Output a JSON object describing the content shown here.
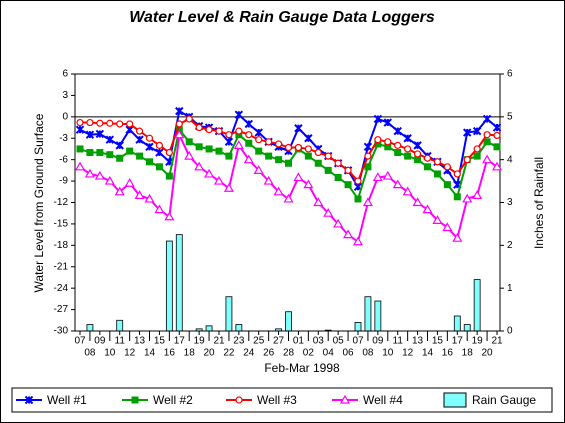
{
  "chart_data": {
    "type": "line",
    "title": "Water Level & Rain Gauge Data Loggers",
    "x_label": "Feb-Mar 1998",
    "y_label": "Water Level from Ground Surface",
    "y2_label": "Inches of Rainfall",
    "categories": [
      "07",
      "08",
      "09",
      "10",
      "11",
      "12",
      "13",
      "14",
      "15",
      "16",
      "17",
      "18",
      "19",
      "20",
      "21",
      "22",
      "23",
      "24",
      "25",
      "26",
      "27",
      "28",
      "01",
      "02",
      "03",
      "04",
      "05",
      "06",
      "07",
      "08",
      "09",
      "10",
      "11",
      "12",
      "13",
      "14",
      "15",
      "16",
      "17",
      "18",
      "19",
      "20",
      "21"
    ],
    "ylim": [
      -30,
      6
    ],
    "yticks": [
      -30,
      -27,
      -24,
      -21,
      -18,
      -15,
      -12,
      -9,
      -6,
      -3,
      0,
      3,
      6
    ],
    "y2lim": [
      0,
      6
    ],
    "y2ticks": [
      0,
      1,
      2,
      3,
      4,
      5,
      6
    ],
    "grid": false,
    "legend": "bottom",
    "series": [
      {
        "name": "Well #1",
        "color": "#0000ff",
        "marker": "x",
        "values": [
          -1.8,
          -2.5,
          -2.4,
          -3.2,
          -4.0,
          -1.8,
          -3.2,
          -4.2,
          -5.0,
          -6.3,
          0.8,
          0,
          -1.3,
          -1.5,
          -2.0,
          -3.5,
          0.3,
          -1.0,
          -2.2,
          -3.5,
          -4.2,
          -4.8,
          -1.6,
          -3.0,
          -4.5,
          -5.5,
          -6.5,
          -7.5,
          -9.8,
          -4.2,
          -0.3,
          -0.8,
          -2.0,
          -3.0,
          -4.0,
          -5.5,
          -6.3,
          -7.5,
          -9.5,
          -2.2,
          -2.0,
          -0.3,
          -1.5
        ]
      },
      {
        "name": "Well #2",
        "color": "#00a000",
        "marker": "square",
        "values": [
          -4.5,
          -5.0,
          -5.0,
          -5.3,
          -5.8,
          -4.8,
          -5.5,
          -6.3,
          -7.0,
          -8.3,
          -1.8,
          -3.5,
          -4.2,
          -4.5,
          -4.8,
          -5.5,
          -2.5,
          -3.7,
          -4.8,
          -5.5,
          -6.0,
          -6.5,
          -4.5,
          -5.5,
          -6.5,
          -7.5,
          -8.5,
          -9.5,
          -11.5,
          -7.0,
          -3.8,
          -4.2,
          -5.0,
          -5.5,
          -6.0,
          -7.0,
          -8.0,
          -9.5,
          -11.2,
          -6.0,
          -5.5,
          -3.5,
          -4.2
        ]
      },
      {
        "name": "Well #3",
        "color": "#ff0000",
        "marker": "circle",
        "values": [
          -0.8,
          -0.8,
          -0.9,
          -0.9,
          -1.0,
          -1.0,
          -2.0,
          -3.0,
          -4.0,
          -5.0,
          -1.0,
          -0.3,
          -1.5,
          -1.8,
          -2.0,
          -2.5,
          -2.0,
          -2.5,
          -3.2,
          -3.5,
          -3.8,
          -4.3,
          -4.3,
          -4.5,
          -5.0,
          -5.5,
          -6.5,
          -7.5,
          -9.0,
          -5.5,
          -3.2,
          -3.5,
          -4.0,
          -4.5,
          -5.2,
          -5.8,
          -6.3,
          -7.0,
          -8.0,
          -6.0,
          -4.5,
          -2.5,
          -2.6
        ]
      },
      {
        "name": "Well #4",
        "color": "#ff00ff",
        "marker": "triangle",
        "values": [
          -7.0,
          -8.0,
          -8.3,
          -9.0,
          -10.5,
          -9.3,
          -11.0,
          -11.5,
          -13.0,
          -14.0,
          -2.5,
          -5.5,
          -7.0,
          -8.0,
          -9.0,
          -10.0,
          -4.0,
          -6.0,
          -7.5,
          -9.0,
          -10.5,
          -11.5,
          -8.5,
          -9.5,
          -12.0,
          -13.5,
          -15.0,
          -16.5,
          -17.5,
          -12.0,
          -8.5,
          -8.3,
          -9.5,
          -10.5,
          -12.0,
          -13.0,
          -14.5,
          -15.5,
          -17.0,
          -11.5,
          -11.0,
          -6.0,
          -7.0
        ]
      },
      {
        "name": "Rain Gauge",
        "color": "#80ffff",
        "type": "bar",
        "axis": "y2",
        "values": [
          0,
          0.15,
          0,
          0,
          0.25,
          0,
          0,
          0,
          0,
          2.1,
          2.25,
          0,
          0.05,
          0.12,
          0,
          0.8,
          0.15,
          0,
          0,
          0,
          0.05,
          0.45,
          0,
          0,
          0,
          0.02,
          0,
          0,
          0.2,
          0.8,
          0.7,
          0,
          0,
          0,
          0,
          0,
          0,
          0,
          0.35,
          0.15,
          1.2,
          0,
          0
        ]
      }
    ]
  }
}
